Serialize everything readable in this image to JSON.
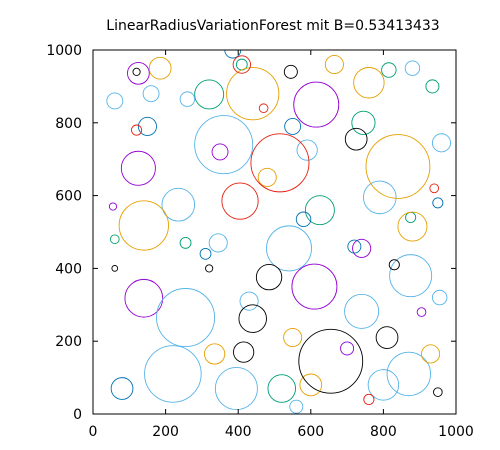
{
  "chart_data": {
    "type": "scatter",
    "title": "LinearRadiusVariationForest mit B=0.53413433",
    "xlabel": "",
    "ylabel": "",
    "xlim": [
      0,
      1000
    ],
    "ylim": [
      0,
      1000
    ],
    "x_ticks": [
      "0",
      "200",
      "400",
      "600",
      "800",
      "1000"
    ],
    "y_ticks": [
      "0",
      "200",
      "400",
      "600",
      "800",
      "1000"
    ],
    "grid": false,
    "legend": "none",
    "marker": "circle-outline",
    "palette": [
      "#9400d3",
      "#009e73",
      "#56b4e9",
      "#e69f00",
      "#0072b2",
      "#e51e10",
      "#000000"
    ],
    "series": [
      {
        "color": "#9400d3",
        "circles": [
          {
            "x": 615,
            "y": 850,
            "r": 62
          },
          {
            "x": 125,
            "y": 675,
            "r": 47
          },
          {
            "x": 140,
            "y": 318,
            "r": 52
          },
          {
            "x": 610,
            "y": 350,
            "r": 62
          },
          {
            "x": 125,
            "y": 936,
            "r": 30
          },
          {
            "x": 350,
            "y": 720,
            "r": 22
          },
          {
            "x": 740,
            "y": 455,
            "r": 25
          },
          {
            "x": 700,
            "y": 180,
            "r": 18
          },
          {
            "x": 55,
            "y": 570,
            "r": 10
          },
          {
            "x": 905,
            "y": 280,
            "r": 12
          }
        ]
      },
      {
        "color": "#009e73",
        "circles": [
          {
            "x": 320,
            "y": 878,
            "r": 40
          },
          {
            "x": 815,
            "y": 945,
            "r": 20
          },
          {
            "x": 625,
            "y": 560,
            "r": 40
          },
          {
            "x": 745,
            "y": 800,
            "r": 32
          },
          {
            "x": 520,
            "y": 70,
            "r": 38
          },
          {
            "x": 60,
            "y": 480,
            "r": 12
          },
          {
            "x": 410,
            "y": 960,
            "r": 15
          },
          {
            "x": 875,
            "y": 540,
            "r": 14
          },
          {
            "x": 255,
            "y": 470,
            "r": 15
          },
          {
            "x": 935,
            "y": 900,
            "r": 18
          }
        ]
      },
      {
        "color": "#56b4e9",
        "circles": [
          {
            "x": 360,
            "y": 740,
            "r": 80
          },
          {
            "x": 220,
            "y": 110,
            "r": 78
          },
          {
            "x": 255,
            "y": 265,
            "r": 80
          },
          {
            "x": 540,
            "y": 455,
            "r": 62
          },
          {
            "x": 870,
            "y": 110,
            "r": 60
          },
          {
            "x": 875,
            "y": 380,
            "r": 58
          },
          {
            "x": 395,
            "y": 70,
            "r": 58
          },
          {
            "x": 955,
            "y": 320,
            "r": 20
          },
          {
            "x": 740,
            "y": 282,
            "r": 47
          },
          {
            "x": 800,
            "y": 80,
            "r": 42
          },
          {
            "x": 235,
            "y": 575,
            "r": 45
          },
          {
            "x": 790,
            "y": 595,
            "r": 45
          },
          {
            "x": 590,
            "y": 725,
            "r": 28
          },
          {
            "x": 260,
            "y": 865,
            "r": 20
          },
          {
            "x": 160,
            "y": 880,
            "r": 22
          },
          {
            "x": 880,
            "y": 950,
            "r": 20
          },
          {
            "x": 960,
            "y": 745,
            "r": 25
          },
          {
            "x": 345,
            "y": 470,
            "r": 25
          },
          {
            "x": 60,
            "y": 860,
            "r": 22
          },
          {
            "x": 430,
            "y": 310,
            "r": 25
          },
          {
            "x": 560,
            "y": 20,
            "r": 18
          }
        ]
      },
      {
        "color": "#e69f00",
        "circles": [
          {
            "x": 840,
            "y": 680,
            "r": 88
          },
          {
            "x": 440,
            "y": 880,
            "r": 72
          },
          {
            "x": 140,
            "y": 518,
            "r": 68
          },
          {
            "x": 880,
            "y": 515,
            "r": 40
          },
          {
            "x": 760,
            "y": 910,
            "r": 42
          },
          {
            "x": 600,
            "y": 80,
            "r": 30
          },
          {
            "x": 550,
            "y": 210,
            "r": 25
          },
          {
            "x": 480,
            "y": 650,
            "r": 25
          },
          {
            "x": 930,
            "y": 165,
            "r": 25
          },
          {
            "x": 185,
            "y": 950,
            "r": 30
          },
          {
            "x": 335,
            "y": 165,
            "r": 28
          },
          {
            "x": 665,
            "y": 960,
            "r": 25
          }
        ]
      },
      {
        "color": "#0072b2",
        "circles": [
          {
            "x": 720,
            "y": 460,
            "r": 18
          },
          {
            "x": 150,
            "y": 790,
            "r": 25
          },
          {
            "x": 550,
            "y": 790,
            "r": 22
          },
          {
            "x": 310,
            "y": 440,
            "r": 15
          },
          {
            "x": 385,
            "y": 1000,
            "r": 22
          },
          {
            "x": 80,
            "y": 70,
            "r": 30
          },
          {
            "x": 580,
            "y": 535,
            "r": 20
          },
          {
            "x": 950,
            "y": 580,
            "r": 14
          }
        ]
      },
      {
        "color": "#e51e10",
        "circles": [
          {
            "x": 515,
            "y": 690,
            "r": 80
          },
          {
            "x": 405,
            "y": 585,
            "r": 50
          },
          {
            "x": 410,
            "y": 960,
            "r": 24
          },
          {
            "x": 120,
            "y": 780,
            "r": 14
          },
          {
            "x": 940,
            "y": 620,
            "r": 12
          },
          {
            "x": 760,
            "y": 40,
            "r": 14
          },
          {
            "x": 470,
            "y": 840,
            "r": 12
          }
        ]
      },
      {
        "color": "#000000",
        "circles": [
          {
            "x": 655,
            "y": 145,
            "r": 88
          },
          {
            "x": 440,
            "y": 262,
            "r": 38
          },
          {
            "x": 485,
            "y": 376,
            "r": 35
          },
          {
            "x": 725,
            "y": 755,
            "r": 30
          },
          {
            "x": 810,
            "y": 210,
            "r": 30
          },
          {
            "x": 415,
            "y": 170,
            "r": 28
          },
          {
            "x": 830,
            "y": 410,
            "r": 14
          },
          {
            "x": 545,
            "y": 940,
            "r": 18
          },
          {
            "x": 120,
            "y": 940,
            "r": 10
          },
          {
            "x": 60,
            "y": 400,
            "r": 8
          },
          {
            "x": 950,
            "y": 60,
            "r": 12
          },
          {
            "x": 320,
            "y": 400,
            "r": 10
          }
        ]
      }
    ]
  }
}
